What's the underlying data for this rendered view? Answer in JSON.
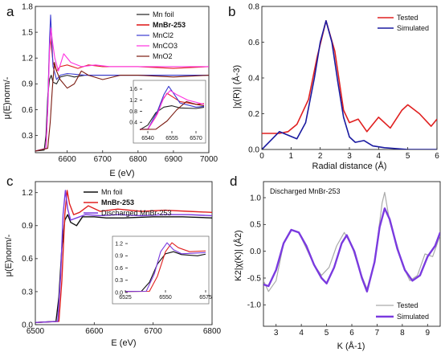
{
  "figure": {
    "panels": [
      {
        "id": "a",
        "letter": "a"
      },
      {
        "id": "b",
        "letter": "b"
      },
      {
        "id": "c",
        "letter": "c"
      },
      {
        "id": "d",
        "letter": "d"
      }
    ]
  },
  "chart_data": [
    {
      "panel": "a",
      "type": "line",
      "xlabel": "E (eV)",
      "ylabel": "μ(E)norm/-",
      "xlim": [
        6510,
        7000
      ],
      "ylim": [
        0.1,
        1.8
      ],
      "xticks": [
        6600,
        6700,
        6800,
        6900,
        7000
      ],
      "yticks": [
        0.3,
        0.6,
        0.9,
        1.2,
        1.5,
        1.8
      ],
      "yticklabels": [
        "0.3",
        "0.6",
        "0.9",
        "1.2",
        "1.5",
        "1.8"
      ],
      "legend": [
        "Mn foil",
        "MnBr-253",
        "MnCl2",
        "MnCO3",
        "MnO2"
      ],
      "series": [
        {
          "name": "Mn foil",
          "color": "#222222",
          "x": [
            6510,
            6535,
            6540,
            6545,
            6550,
            6555,
            6560,
            6570,
            6580,
            6600,
            6620,
            6650,
            6700,
            6800,
            6900,
            7000
          ],
          "y": [
            0.12,
            0.13,
            0.3,
            0.75,
            0.95,
            1.0,
            0.92,
            0.9,
            0.98,
            1.0,
            0.98,
            1.0,
            1.0,
            1.0,
            1.0,
            1.0
          ]
        },
        {
          "name": "MnBr-253",
          "color": "#e02020",
          "x": [
            6510,
            6540,
            6545,
            6548,
            6552,
            6556,
            6560,
            6570,
            6580,
            6600,
            6630,
            6660,
            6700,
            6800,
            6900,
            7000
          ],
          "y": [
            0.12,
            0.15,
            0.6,
            1.1,
            1.45,
            1.3,
            1.15,
            1.05,
            1.1,
            1.12,
            1.08,
            1.12,
            1.1,
            1.1,
            1.08,
            1.1
          ]
        },
        {
          "name": "MnCl2",
          "color": "#3a3ad0",
          "x": [
            6510,
            6540,
            6546,
            6550,
            6553,
            6556,
            6560,
            6570,
            6580,
            6600,
            6650,
            6700,
            6800,
            6900,
            7000
          ],
          "y": [
            0.12,
            0.15,
            0.8,
            1.4,
            1.7,
            1.45,
            1.1,
            0.95,
            1.0,
            1.02,
            1.0,
            1.0,
            1.0,
            1.0,
            1.0
          ]
        },
        {
          "name": "MnCO3",
          "color": "#ff30e0",
          "x": [
            6510,
            6540,
            6546,
            6550,
            6554,
            6558,
            6565,
            6575,
            6590,
            6610,
            6640,
            6680,
            6720,
            6800,
            6900,
            7000
          ],
          "y": [
            0.12,
            0.15,
            0.7,
            1.3,
            1.55,
            1.4,
            1.2,
            1.05,
            1.25,
            1.15,
            1.1,
            1.12,
            1.1,
            1.1,
            1.1,
            1.1
          ]
        },
        {
          "name": "MnO2",
          "color": "#7a1a10",
          "x": [
            6510,
            6545,
            6552,
            6558,
            6564,
            6570,
            6580,
            6600,
            6620,
            6640,
            6660,
            6700,
            6750,
            6800,
            6900,
            7000
          ],
          "y": [
            0.12,
            0.15,
            0.45,
            0.85,
            1.15,
            1.05,
            0.95,
            0.85,
            0.9,
            1.05,
            1.0,
            0.95,
            1.0,
            1.0,
            0.98,
            1.0
          ]
        }
      ],
      "inset": {
        "xlim": [
          6535,
          6575
        ],
        "ylim": [
          0.0,
          1.8
        ],
        "xticks": [
          6540,
          6555,
          6570
        ],
        "yticks": [
          0.4,
          0.8,
          1.2,
          1.6
        ],
        "yticklabels": [
          "0.4",
          "0.8",
          "1.2",
          "1.6"
        ]
      }
    },
    {
      "panel": "b",
      "type": "line",
      "xlabel": "Radial distance (Å)",
      "ylabel": "|χ(R)| (Å-3)",
      "xlim": [
        0,
        6
      ],
      "ylim": [
        0,
        0.8
      ],
      "xticks": [
        0,
        1,
        2,
        3,
        4,
        5,
        6
      ],
      "yticks": [
        0.0,
        0.2,
        0.4,
        0.6,
        0.8
      ],
      "yticklabels": [
        "0.0",
        "0.2",
        "0.4",
        "0.6",
        "0.8"
      ],
      "legend": [
        "Tested",
        "Simulated"
      ],
      "series": [
        {
          "name": "Tested",
          "color": "#e02020",
          "x": [
            0,
            0.6,
            0.9,
            1.2,
            1.6,
            1.9,
            2.2,
            2.5,
            2.8,
            3.0,
            3.3,
            3.6,
            4.0,
            4.4,
            4.8,
            5.0,
            5.4,
            5.8,
            6.0
          ],
          "y": [
            0.09,
            0.09,
            0.1,
            0.14,
            0.28,
            0.52,
            0.72,
            0.55,
            0.22,
            0.15,
            0.17,
            0.1,
            0.18,
            0.12,
            0.22,
            0.25,
            0.2,
            0.13,
            0.17
          ]
        },
        {
          "name": "Simulated",
          "color": "#1a1aa0",
          "x": [
            0,
            0.3,
            0.6,
            0.9,
            1.2,
            1.5,
            1.8,
            2.0,
            2.2,
            2.4,
            2.6,
            2.8,
            3.0,
            3.2,
            3.5,
            3.8,
            4.2,
            5.0,
            6.0
          ],
          "y": [
            0.0,
            0.05,
            0.1,
            0.08,
            0.06,
            0.15,
            0.4,
            0.6,
            0.72,
            0.6,
            0.38,
            0.18,
            0.07,
            0.04,
            0.05,
            0.02,
            0.01,
            0.0,
            0.0
          ]
        }
      ]
    },
    {
      "panel": "c",
      "type": "line",
      "xlabel": "E (eV)",
      "ylabel": "μ(E)norm/-",
      "xlim": [
        6500,
        6800
      ],
      "ylim": [
        0,
        1.3
      ],
      "xticks": [
        6500,
        6600,
        6700,
        6800
      ],
      "yticks": [
        0.0,
        0.3,
        0.6,
        0.9,
        1.2
      ],
      "yticklabels": [
        "0.0",
        "0.3",
        "0.6",
        "0.9",
        "1.2"
      ],
      "legend": [
        "Mn foil",
        "MnBr-253",
        "Discharged MnBr-253"
      ],
      "series": [
        {
          "name": "Mn foil",
          "color": "#111111",
          "x": [
            6500,
            6535,
            6540,
            6545,
            6550,
            6555,
            6560,
            6570,
            6580,
            6600,
            6620,
            6650,
            6700,
            6750,
            6800
          ],
          "y": [
            0.02,
            0.03,
            0.25,
            0.7,
            0.95,
            1.0,
            0.93,
            0.9,
            0.98,
            0.98,
            0.97,
            0.97,
            0.98,
            0.98,
            0.97
          ]
        },
        {
          "name": "MnBr-253",
          "color": "#e02020",
          "x": [
            6500,
            6540,
            6545,
            6550,
            6554,
            6558,
            6565,
            6575,
            6590,
            6610,
            6640,
            6680,
            6720,
            6760,
            6800
          ],
          "y": [
            0.02,
            0.03,
            0.4,
            1.0,
            1.22,
            1.1,
            1.0,
            1.02,
            1.08,
            1.03,
            1.05,
            1.03,
            1.04,
            1.03,
            1.02
          ]
        },
        {
          "name": "Discharged MnBr-253",
          "color": "#7a3adf",
          "x": [
            6500,
            6538,
            6543,
            6547,
            6551,
            6555,
            6560,
            6570,
            6585,
            6610,
            6640,
            6680,
            6720,
            6760,
            6800
          ],
          "y": [
            0.02,
            0.03,
            0.45,
            1.0,
            1.22,
            1.05,
            0.95,
            0.97,
            1.0,
            0.99,
            1.0,
            0.99,
            1.0,
            1.0,
            0.99
          ]
        }
      ],
      "inset": {
        "xlim": [
          6525,
          6575
        ],
        "ylim": [
          0.0,
          1.3
        ],
        "xticks": [
          6525,
          6550,
          6575
        ],
        "yticks": [
          0.0,
          0.3,
          0.6,
          0.9,
          1.2
        ],
        "yticklabels": [
          "0.0",
          "0.3",
          "0.6",
          "0.9",
          "1.2"
        ]
      }
    },
    {
      "panel": "d",
      "type": "line",
      "xlabel": "K (Å-1)",
      "ylabel": "K2|χ(K)| (Å2)",
      "title": "Discharged MnBr-253",
      "xlim": [
        2.5,
        9.5
      ],
      "ylim": [
        -1.4,
        1.3
      ],
      "xticks": [
        3,
        4,
        5,
        6,
        7,
        8,
        9
      ],
      "yticks": [
        -1.0,
        -0.5,
        0.0,
        0.5,
        1.0
      ],
      "yticklabels": [
        "-1.0",
        "-0.5",
        "0.0",
        "0.5",
        "1.0"
      ],
      "legend": [
        "Tested",
        "Simulated"
      ],
      "series": [
        {
          "name": "Tested",
          "color": "#aaaaaa",
          "x": [
            2.5,
            2.7,
            3.0,
            3.3,
            3.6,
            3.9,
            4.2,
            4.5,
            4.8,
            5.1,
            5.4,
            5.7,
            6.0,
            6.3,
            6.6,
            6.9,
            7.2,
            7.3,
            7.5,
            7.8,
            8.0,
            8.3,
            8.6,
            8.9,
            9.2,
            9.5
          ],
          "y": [
            -0.55,
            -0.75,
            -0.55,
            0.15,
            0.4,
            0.35,
            0.05,
            -0.25,
            -0.45,
            -0.3,
            0.1,
            0.35,
            0.1,
            -0.35,
            -0.7,
            -0.2,
            0.9,
            1.1,
            0.55,
            0.1,
            -0.25,
            -0.55,
            -0.45,
            -0.05,
            -0.1,
            0.3
          ]
        },
        {
          "name": "Simulated",
          "color": "#7a3adf",
          "x": [
            2.5,
            2.7,
            3.0,
            3.3,
            3.6,
            3.9,
            4.2,
            4.5,
            4.8,
            5.0,
            5.3,
            5.6,
            5.8,
            6.1,
            6.4,
            6.6,
            6.9,
            7.1,
            7.3,
            7.5,
            7.8,
            8.1,
            8.4,
            8.7,
            9.0,
            9.3,
            9.5
          ],
          "y": [
            -0.62,
            -0.65,
            -0.35,
            0.15,
            0.4,
            0.35,
            0.1,
            -0.25,
            -0.5,
            -0.6,
            -0.3,
            0.15,
            0.3,
            0.0,
            -0.5,
            -0.75,
            -0.2,
            0.45,
            0.8,
            0.6,
            0.05,
            -0.35,
            -0.55,
            -0.45,
            -0.1,
            0.1,
            0.35
          ]
        }
      ]
    }
  ]
}
